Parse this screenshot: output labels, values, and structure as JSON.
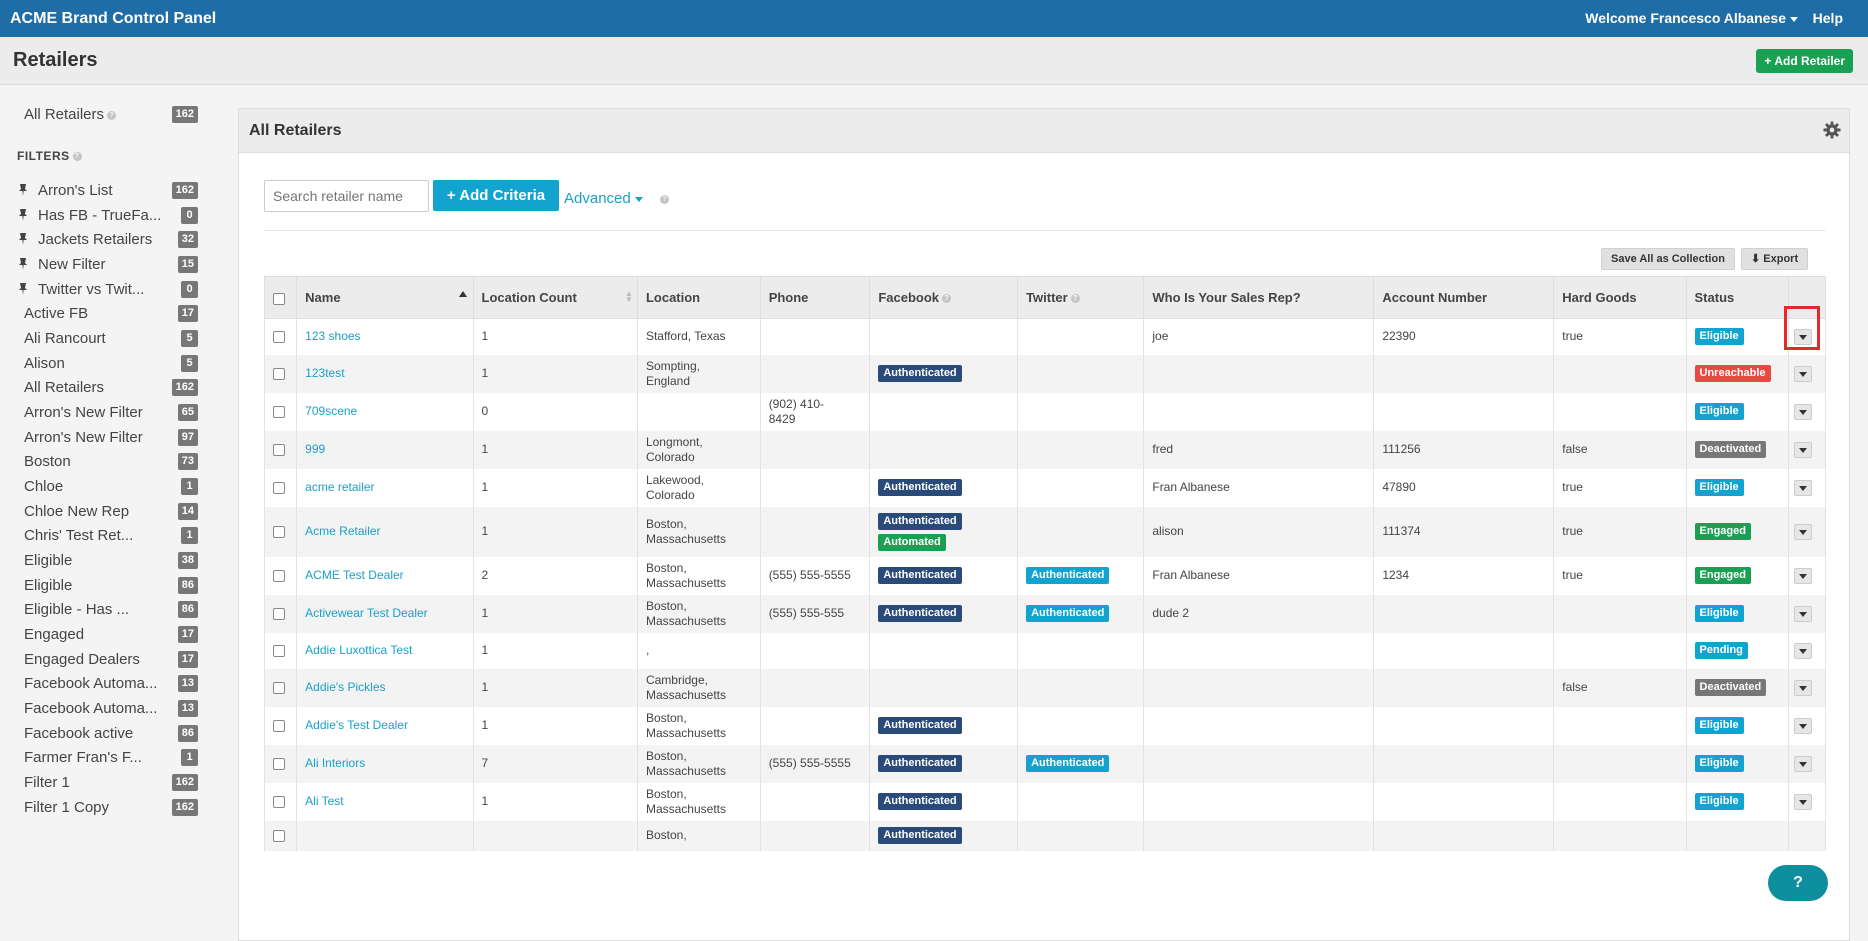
{
  "app": {
    "brand": "ACME Brand Control Panel",
    "welcome": "Welcome Francesco Albanese",
    "help": "Help"
  },
  "page": {
    "title": "Retailers",
    "add_retailer": "+ Add Retailer"
  },
  "sidebar": {
    "all_retailers": {
      "label": "All Retailers",
      "count": "162"
    },
    "filters_heading": "FILTERS",
    "items": [
      {
        "label": "Arron's List",
        "count": "162",
        "pinned": true
      },
      {
        "label": "Has FB - TrueFa...",
        "count": "0",
        "pinned": true
      },
      {
        "label": "Jackets Retailers",
        "count": "32",
        "pinned": true
      },
      {
        "label": "New Filter",
        "count": "15",
        "pinned": true
      },
      {
        "label": "Twitter vs Twit...",
        "count": "0",
        "pinned": true
      },
      {
        "label": "Active FB",
        "count": "17",
        "pinned": false
      },
      {
        "label": "Ali Rancourt",
        "count": "5",
        "pinned": false
      },
      {
        "label": "Alison",
        "count": "5",
        "pinned": false
      },
      {
        "label": "All Retailers",
        "count": "162",
        "pinned": false
      },
      {
        "label": "Arron's New Filter",
        "count": "65",
        "pinned": false
      },
      {
        "label": "Arron's New Filter",
        "count": "97",
        "pinned": false
      },
      {
        "label": "Boston",
        "count": "73",
        "pinned": false
      },
      {
        "label": "Chloe",
        "count": "1",
        "pinned": false
      },
      {
        "label": "Chloe New Rep",
        "count": "14",
        "pinned": false
      },
      {
        "label": "Chris' Test Ret...",
        "count": "1",
        "pinned": false
      },
      {
        "label": "Eligible",
        "count": "38",
        "pinned": false
      },
      {
        "label": "Eligible",
        "count": "86",
        "pinned": false
      },
      {
        "label": "Eligible - Has ...",
        "count": "86",
        "pinned": false
      },
      {
        "label": "Engaged",
        "count": "17",
        "pinned": false
      },
      {
        "label": "Engaged Dealers",
        "count": "17",
        "pinned": false
      },
      {
        "label": "Facebook Automa...",
        "count": "13",
        "pinned": false
      },
      {
        "label": "Facebook Automa...",
        "count": "13",
        "pinned": false
      },
      {
        "label": "Facebook active",
        "count": "86",
        "pinned": false
      },
      {
        "label": "Farmer Fran's F...",
        "count": "1",
        "pinned": false
      },
      {
        "label": "Filter 1",
        "count": "162",
        "pinned": false
      },
      {
        "label": "Filter 1 Copy",
        "count": "162",
        "pinned": false
      }
    ]
  },
  "panel": {
    "title": "All Retailers",
    "search_placeholder": "Search retailer name",
    "add_criteria": "+ Add Criteria",
    "advanced": "Advanced",
    "save_collection": "Save All as Collection",
    "export": "Export"
  },
  "table": {
    "headers": [
      "Name",
      "Location Count",
      "Location",
      "Phone",
      "Facebook",
      "Twitter",
      "Who Is Your Sales Rep?",
      "Account Number",
      "Hard Goods",
      "Status"
    ],
    "rows": [
      {
        "name": "123 shoes",
        "count": "1",
        "location": [
          "Stafford, Texas"
        ],
        "phone": [],
        "facebook": [],
        "twitter": [],
        "rep": "joe",
        "account": "22390",
        "hard_goods": "true",
        "status": "Eligible"
      },
      {
        "name": "123test",
        "count": "1",
        "location": [
          "Sompting,",
          "England"
        ],
        "phone": [],
        "facebook": [
          "Authenticated"
        ],
        "twitter": [],
        "rep": "",
        "account": "",
        "hard_goods": "",
        "status": "Unreachable"
      },
      {
        "name": "709scene",
        "count": "0",
        "location": [],
        "phone": [
          "(902) 410-",
          "8429"
        ],
        "facebook": [],
        "twitter": [],
        "rep": "",
        "account": "",
        "hard_goods": "",
        "status": "Eligible"
      },
      {
        "name": "999",
        "count": "1",
        "location": [
          "Longmont,",
          "Colorado"
        ],
        "phone": [],
        "facebook": [],
        "twitter": [],
        "rep": "fred",
        "account": "111256",
        "hard_goods": "false",
        "status": "Deactivated"
      },
      {
        "name": "acme retailer",
        "count": "1",
        "location": [
          "Lakewood,",
          "Colorado"
        ],
        "phone": [],
        "facebook": [
          "Authenticated"
        ],
        "twitter": [],
        "rep": "Fran Albanese",
        "account": "47890",
        "hard_goods": "true",
        "status": "Eligible"
      },
      {
        "name": "Acme Retailer",
        "count": "1",
        "location": [
          "Boston,",
          "Massachusetts"
        ],
        "phone": [],
        "facebook": [
          "Authenticated",
          "Automated"
        ],
        "twitter": [],
        "rep": "alison",
        "account": "111374",
        "hard_goods": "true",
        "status": "Engaged"
      },
      {
        "name": "ACME Test Dealer",
        "count": "2",
        "location": [
          "Boston,",
          "Massachusetts"
        ],
        "phone": [
          "(555) 555-5555"
        ],
        "facebook": [
          "Authenticated"
        ],
        "twitter": [
          "Authenticated"
        ],
        "rep": "Fran Albanese",
        "account": "1234",
        "hard_goods": "true",
        "status": "Engaged"
      },
      {
        "name": "Activewear Test Dealer",
        "count": "1",
        "location": [
          "Boston,",
          "Massachusetts"
        ],
        "phone": [
          "(555) 555-555"
        ],
        "facebook": [
          "Authenticated"
        ],
        "twitter": [
          "Authenticated"
        ],
        "rep": "dude 2",
        "account": "",
        "hard_goods": "",
        "status": "Eligible"
      },
      {
        "name": "Addie Luxottica Test",
        "count": "1",
        "location": [
          ","
        ],
        "phone": [],
        "facebook": [],
        "twitter": [],
        "rep": "",
        "account": "",
        "hard_goods": "",
        "status": "Pending"
      },
      {
        "name": "Addie's Pickles",
        "count": "1",
        "location": [
          "Cambridge,",
          "Massachusetts"
        ],
        "phone": [],
        "facebook": [],
        "twitter": [],
        "rep": "",
        "account": "",
        "hard_goods": "false",
        "status": "Deactivated"
      },
      {
        "name": "Addie's Test Dealer",
        "count": "1",
        "location": [
          "Boston,",
          "Massachusetts"
        ],
        "phone": [],
        "facebook": [
          "Authenticated"
        ],
        "twitter": [],
        "rep": "",
        "account": "",
        "hard_goods": "",
        "status": "Eligible"
      },
      {
        "name": "Ali Interiors",
        "count": "7",
        "location": [
          "Boston,",
          "Massachusetts"
        ],
        "phone": [
          "(555) 555-5555"
        ],
        "facebook": [
          "Authenticated"
        ],
        "twitter": [
          "Authenticated"
        ],
        "rep": "",
        "account": "",
        "hard_goods": "",
        "status": "Eligible"
      },
      {
        "name": "Ali Test",
        "count": "1",
        "location": [
          "Boston,",
          "Massachusetts"
        ],
        "phone": [],
        "facebook": [
          "Authenticated"
        ],
        "twitter": [],
        "rep": "",
        "account": "",
        "hard_goods": "",
        "status": "Eligible"
      },
      {
        "name": "",
        "count": "",
        "location": [
          "Boston,"
        ],
        "phone": [],
        "facebook": [
          "Authenticated"
        ],
        "twitter": [],
        "rep": "",
        "account": "",
        "hard_goods": "",
        "status": ""
      }
    ]
  },
  "colors": {
    "topbar": "#1f6da6",
    "link": "#1aa0c8",
    "Eligible": "#12a4cf",
    "Unreachable": "#e84a42",
    "Deactivated": "#777777",
    "Engaged": "#1aa053",
    "Pending": "#12a4cf",
    "Authenticated_fb": "#2a4a7a",
    "Authenticated_tw": "#12a4cf",
    "Automated": "#1aa053"
  },
  "help_bubble": "?"
}
